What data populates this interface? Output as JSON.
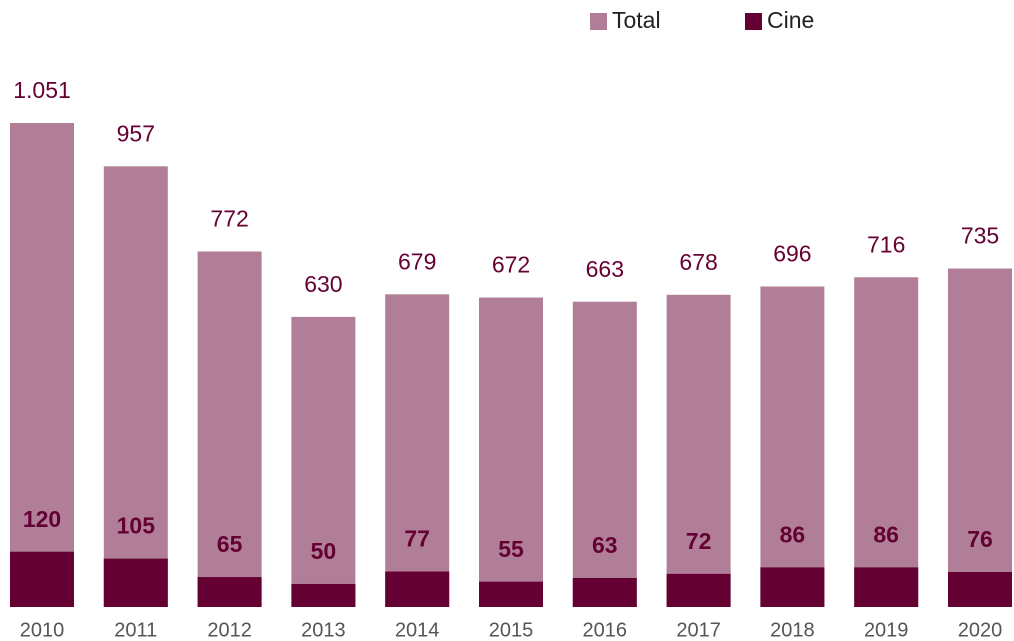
{
  "chart_data": {
    "type": "bar",
    "categories": [
      "2010",
      "2011",
      "2012",
      "2013",
      "2014",
      "2015",
      "2016",
      "2017",
      "2018",
      "2019",
      "2020"
    ],
    "series": [
      {
        "name": "Total",
        "color": "#b07f97",
        "values": [
          1051,
          957,
          772,
          630,
          679,
          672,
          663,
          678,
          696,
          716,
          735
        ],
        "value_labels": [
          "1.051",
          "957",
          "772",
          "630",
          "679",
          "672",
          "663",
          "678",
          "696",
          "716",
          "735"
        ]
      },
      {
        "name": "Cine",
        "color": "#650033",
        "values": [
          120,
          105,
          65,
          50,
          77,
          55,
          63,
          72,
          86,
          86,
          76
        ]
      }
    ],
    "legend": "top-right",
    "overlap": true
  }
}
